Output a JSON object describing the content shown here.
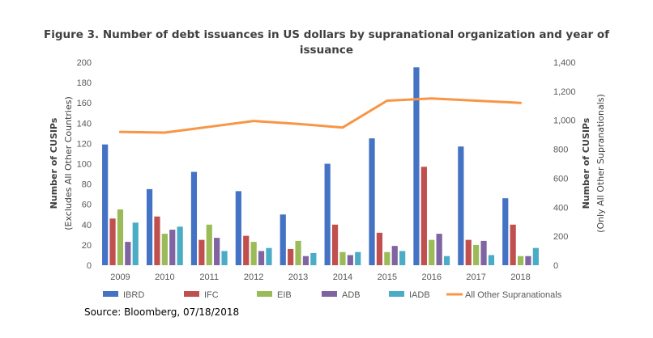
{
  "chart_data": {
    "type": "bar",
    "title_line1": "Figure 3. Number of debt issuances in US dollars by supranational organization and year of",
    "title_line2": "issuance",
    "categories": [
      "2009",
      "2010",
      "2011",
      "2012",
      "2013",
      "2014",
      "2015",
      "2016",
      "2017",
      "2018"
    ],
    "series": [
      {
        "name": "IBRD",
        "color": "#4472C4",
        "axis": "left",
        "values": [
          119,
          75,
          92,
          73,
          50,
          100,
          125,
          195,
          117,
          66
        ]
      },
      {
        "name": "IFC",
        "color": "#C0504D",
        "axis": "left",
        "values": [
          46,
          48,
          25,
          29,
          16,
          40,
          32,
          97,
          25,
          40
        ]
      },
      {
        "name": "EIB",
        "color": "#9BBB59",
        "axis": "left",
        "values": [
          55,
          31,
          40,
          23,
          24,
          13,
          13,
          25,
          20,
          9
        ]
      },
      {
        "name": "ADB",
        "color": "#8064A2",
        "axis": "left",
        "values": [
          23,
          35,
          27,
          14,
          9,
          10,
          19,
          31,
          24,
          9
        ]
      },
      {
        "name": "IADB",
        "color": "#4BACC6",
        "axis": "left",
        "values": [
          42,
          38,
          14,
          17,
          12,
          13,
          14,
          9,
          10,
          17
        ]
      },
      {
        "name": "All Other Supranationals",
        "type": "line",
        "color": "#F79646",
        "axis": "right",
        "values": [
          920,
          915,
          955,
          995,
          975,
          950,
          1135,
          1150,
          1135,
          1120
        ]
      }
    ],
    "y_left": {
      "label_line1": "Number of CUSIPs",
      "label_line2": "(Excludes All Other Countries)",
      "ylim": [
        0,
        200
      ],
      "ticks": [
        "0",
        "20",
        "40",
        "60",
        "80",
        "100",
        "120",
        "140",
        "160",
        "180",
        "200"
      ]
    },
    "y_right": {
      "label_line1": "Number of CUSIPs",
      "label_line2": "(Only All Other Supranationals)",
      "ylim": [
        0,
        1400
      ],
      "ticks": [
        "0",
        "200",
        "400",
        "600",
        "800",
        "1,000",
        "1,200",
        "1,400"
      ]
    },
    "legend_position": "bottom",
    "grid": false
  },
  "source": "Source: Bloomberg, 07/18/2018"
}
